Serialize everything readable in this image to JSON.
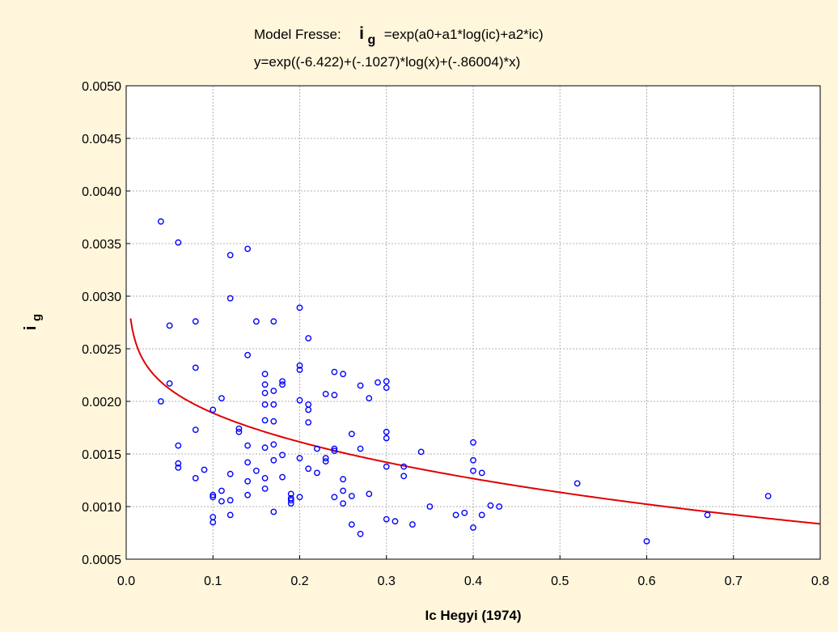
{
  "colors": {
    "background": "#fff6dc",
    "plot_background": "#ffffff",
    "grid": "#b0b0b0",
    "points": "#0000ff",
    "curve": "#e00000"
  },
  "chart_data": {
    "type": "scatter",
    "title": {
      "prefix": "Model Fresse:",
      "symbol": "i",
      "subscript": "g",
      "formula": "=exp(a0+a1*log(ic)+a2*ic)"
    },
    "subtitle": "y=exp((-6.422)+(-.1027)*log(x)+(-.86004)*x)",
    "xlabel": "Ic Hegyi (1974)",
    "ylabel": {
      "symbol": "i",
      "subscript": "g"
    },
    "xlim": [
      0.0,
      0.8
    ],
    "ylim": [
      0.0005,
      0.005
    ],
    "x_ticks": [
      "0.0",
      "0.1",
      "0.2",
      "0.3",
      "0.4",
      "0.5",
      "0.6",
      "0.7",
      "0.8"
    ],
    "y_ticks": [
      "0.0005",
      "0.0010",
      "0.0015",
      "0.0020",
      "0.0025",
      "0.0030",
      "0.0035",
      "0.0040",
      "0.0045",
      "0.0050"
    ],
    "grid": true,
    "series": [
      {
        "type": "scatter",
        "x": [
          0.04,
          0.04,
          0.05,
          0.05,
          0.06,
          0.06,
          0.06,
          0.06,
          0.08,
          0.08,
          0.08,
          0.08,
          0.09,
          0.1,
          0.1,
          0.1,
          0.1,
          0.1,
          0.11,
          0.11,
          0.11,
          0.12,
          0.12,
          0.12,
          0.12,
          0.12,
          0.13,
          0.13,
          0.14,
          0.14,
          0.14,
          0.14,
          0.14,
          0.14,
          0.15,
          0.15,
          0.16,
          0.16,
          0.16,
          0.16,
          0.16,
          0.16,
          0.16,
          0.16,
          0.17,
          0.17,
          0.17,
          0.17,
          0.17,
          0.17,
          0.17,
          0.18,
          0.18,
          0.18,
          0.18,
          0.19,
          0.19,
          0.19,
          0.19,
          0.2,
          0.2,
          0.2,
          0.2,
          0.2,
          0.2,
          0.21,
          0.21,
          0.21,
          0.21,
          0.21,
          0.22,
          0.22,
          0.23,
          0.23,
          0.23,
          0.24,
          0.24,
          0.24,
          0.24,
          0.24,
          0.25,
          0.25,
          0.25,
          0.25,
          0.26,
          0.26,
          0.26,
          0.27,
          0.27,
          0.27,
          0.28,
          0.28,
          0.29,
          0.3,
          0.3,
          0.3,
          0.3,
          0.3,
          0.3,
          0.31,
          0.32,
          0.32,
          0.33,
          0.34,
          0.35,
          0.38,
          0.39,
          0.4,
          0.4,
          0.4,
          0.4,
          0.41,
          0.41,
          0.42,
          0.43,
          0.52,
          0.6,
          0.67,
          0.74
        ],
        "y": [
          0.00371,
          0.002,
          0.00272,
          0.00217,
          0.00351,
          0.00158,
          0.00141,
          0.00137,
          0.00276,
          0.00232,
          0.00173,
          0.00127,
          0.00135,
          0.00192,
          0.00111,
          0.00109,
          0.0009,
          0.00085,
          0.00203,
          0.00115,
          0.00105,
          0.00339,
          0.00298,
          0.00131,
          0.00106,
          0.00092,
          0.00174,
          0.00171,
          0.00345,
          0.00244,
          0.00158,
          0.00142,
          0.00124,
          0.00111,
          0.00276,
          0.00134,
          0.00226,
          0.00216,
          0.00208,
          0.00197,
          0.00182,
          0.00156,
          0.00127,
          0.00117,
          0.00276,
          0.0021,
          0.00197,
          0.00181,
          0.00159,
          0.00144,
          0.00095,
          0.00219,
          0.00216,
          0.00149,
          0.00128,
          0.00112,
          0.00108,
          0.00106,
          0.00103,
          0.00289,
          0.00234,
          0.0023,
          0.00201,
          0.00146,
          0.00109,
          0.0026,
          0.00197,
          0.00192,
          0.0018,
          0.00136,
          0.00155,
          0.00132,
          0.00207,
          0.00146,
          0.00143,
          0.00228,
          0.00206,
          0.00155,
          0.00153,
          0.00109,
          0.00226,
          0.00126,
          0.00115,
          0.00103,
          0.00169,
          0.0011,
          0.00083,
          0.00215,
          0.00155,
          0.00074,
          0.00203,
          0.00112,
          0.00218,
          0.00219,
          0.00213,
          0.00171,
          0.00165,
          0.00138,
          0.00088,
          0.00086,
          0.00138,
          0.00129,
          0.00083,
          0.00152,
          0.001,
          0.00092,
          0.00094,
          0.00161,
          0.00144,
          0.00134,
          0.0008,
          0.00132,
          0.00092,
          0.00101,
          0.001,
          0.00122,
          0.00067,
          0.00092,
          0.0011
        ]
      },
      {
        "type": "line",
        "equation": "y=exp((-6.422)+(-.1027)*log(x)+(-.86004)*x)",
        "a0": -6.422,
        "a1": -0.1027,
        "a2": -0.86004,
        "x_from": 0.005,
        "x_to": 0.8
      }
    ]
  }
}
